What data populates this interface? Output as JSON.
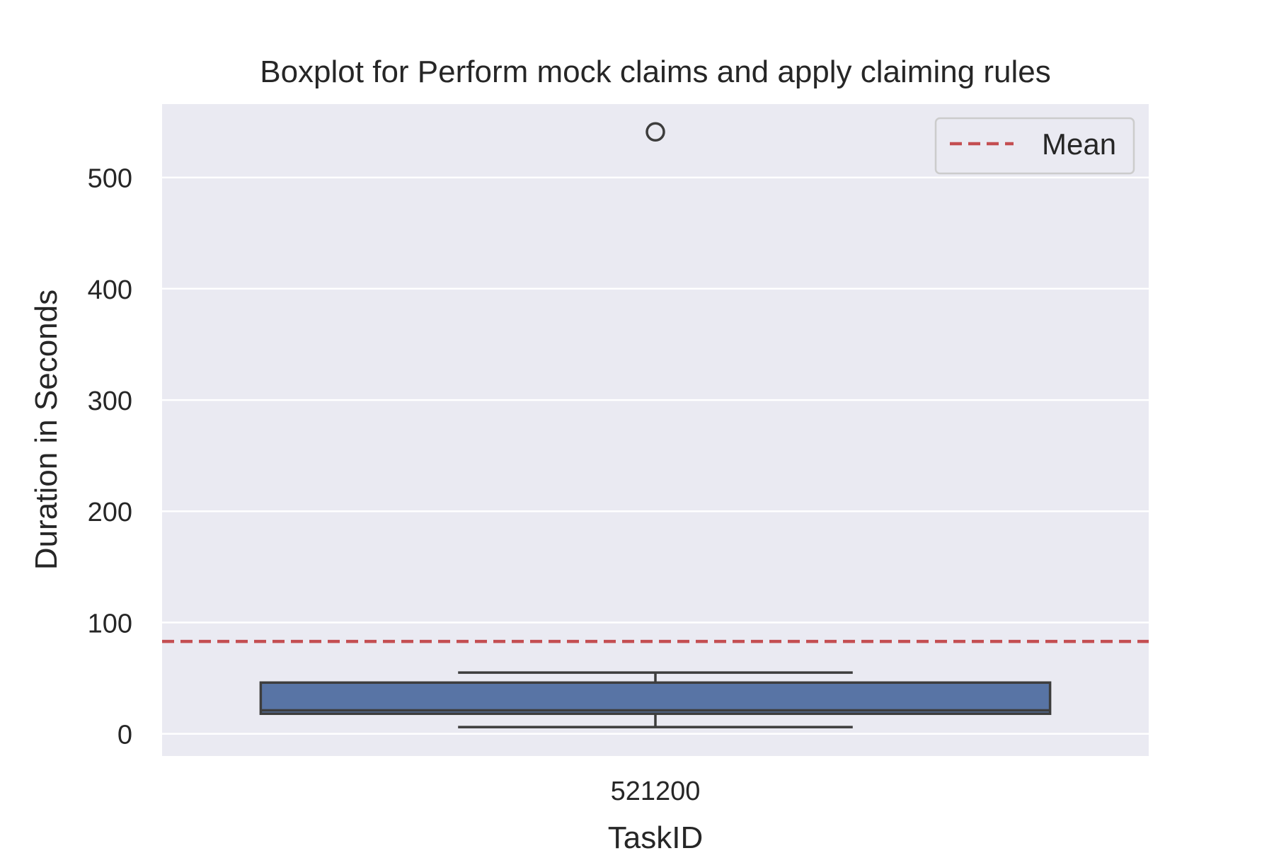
{
  "chart_data": {
    "type": "boxplot",
    "title": "Boxplot for Perform mock claims and apply claiming rules",
    "xlabel": "TaskID",
    "ylabel": "Duration in Seconds",
    "categories": [
      "521200"
    ],
    "ylim": [
      -20,
      566
    ],
    "yticks": [
      0,
      100,
      200,
      300,
      400,
      500
    ],
    "grid": true,
    "boxes": [
      {
        "category": "521200",
        "whisker_low": 6,
        "q1": 18,
        "median": 21,
        "q3": 46,
        "whisker_high": 55,
        "outliers": [
          541
        ]
      }
    ],
    "mean": 83,
    "legend": {
      "entries": [
        "Mean"
      ],
      "position": "top-right"
    },
    "colors": {
      "box_fill": "#5874a5",
      "box_edge": "#3d3d3d",
      "mean_line": "#c44e52",
      "plot_bg": "#eaeaf2",
      "grid": "#ffffff"
    }
  }
}
